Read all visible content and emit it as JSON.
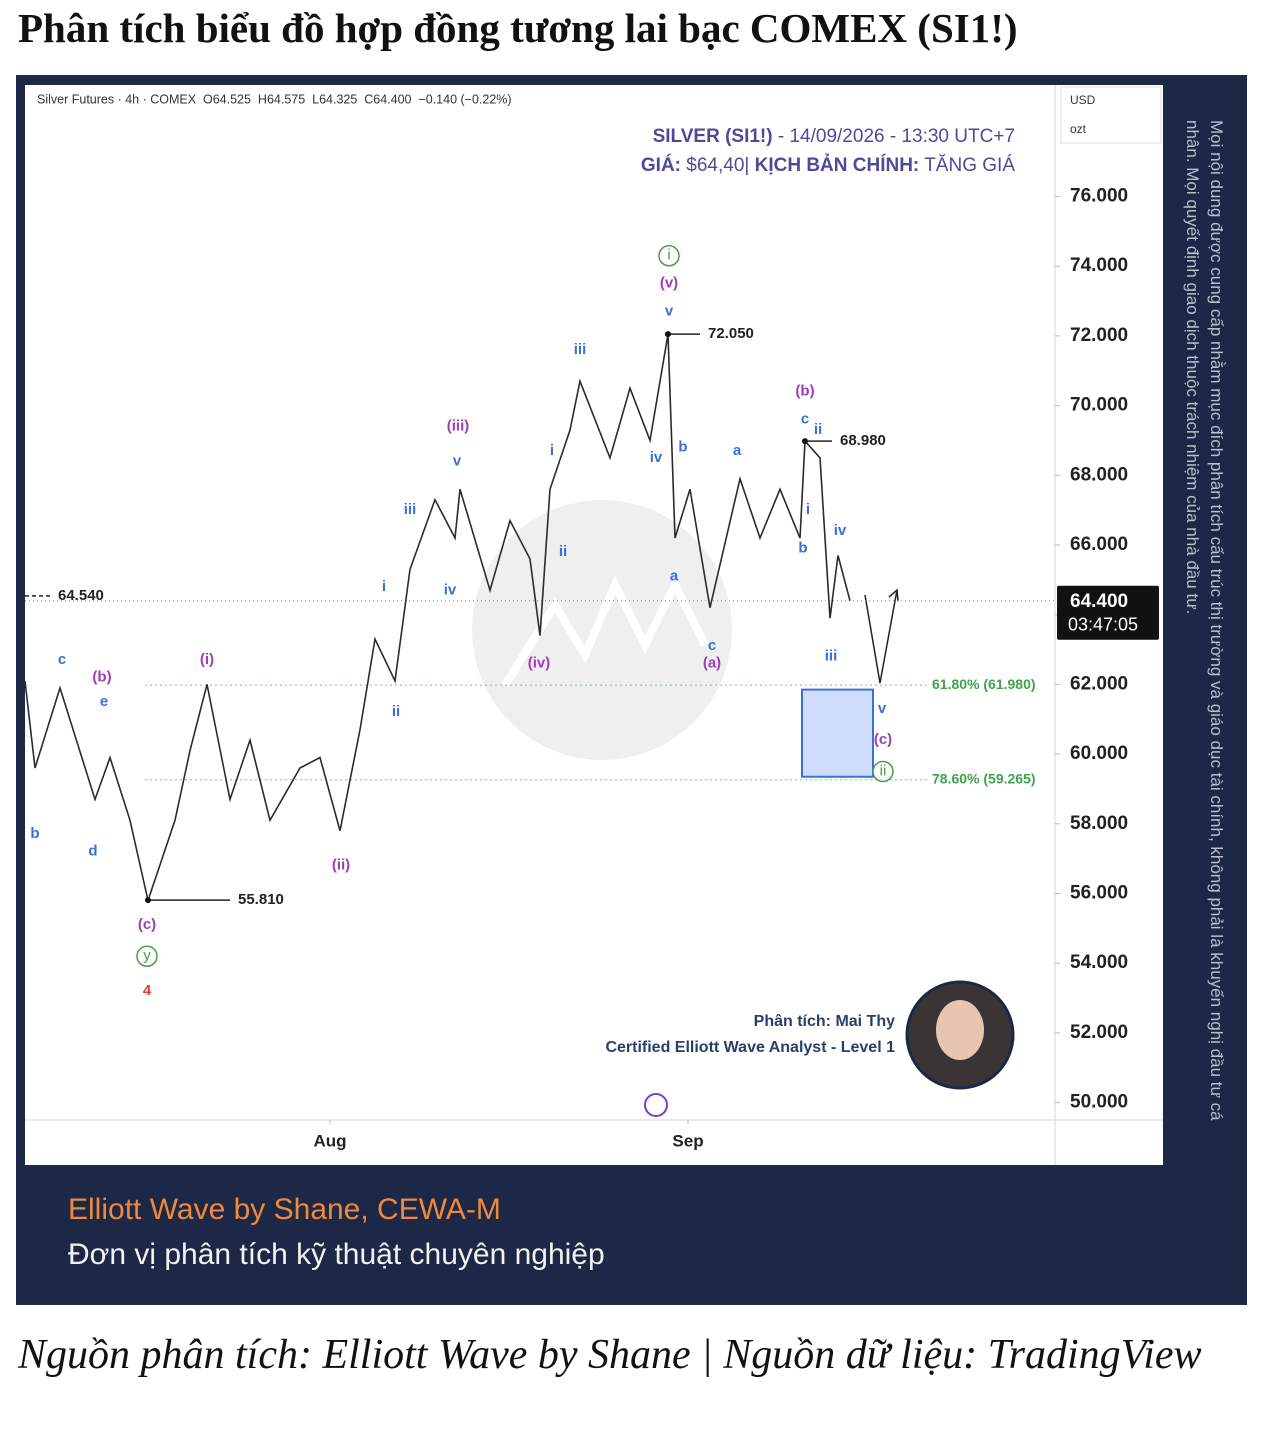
{
  "header": {
    "title": "Phân tích biểu đồ hợp đồng tương lai bạc COMEX (SI1!)"
  },
  "chart_data": {
    "type": "line",
    "symbol_info": "Silver Futures · 4h · COMEX  O64.525  H64.575  L64.325  C64.400  −0.140 (−0.22%)",
    "title_symbol": "SILVER (SI1!)",
    "title_rest": " - 14/09/2026 - 13:30 UTC+7",
    "price_label": "GIÁ:",
    "price_text": " $64,40| ",
    "scenario_label": "KỊCH BẢN CHÍNH:",
    "scenario_text": " TĂNG GIÁ",
    "currency": "USD",
    "unit": "ozt",
    "color": "#2b2b2b",
    "x": [
      0,
      1,
      3.5,
      7,
      8.5,
      10.5,
      12.3,
      15,
      16.5,
      18.2,
      20.5,
      22.5,
      24.5,
      27.5,
      29.5,
      31.5,
      33.5,
      35,
      37,
      38.5,
      41,
      43,
      43.5,
      46.5,
      48.5,
      50.5,
      51.5,
      52.5,
      54.5,
      55.5,
      58.5,
      60.5,
      62.5,
      64.3,
      65,
      66.5,
      68.5,
      71.5,
      73.5,
      75.5,
      77.5,
      78,
      79.5,
      80.5,
      81.3,
      82.5
    ],
    "values": [
      62.1,
      59.6,
      61.9,
      58.7,
      59.9,
      58.1,
      55.8,
      58.1,
      60.1,
      62.0,
      58.7,
      60.4,
      58.1,
      59.6,
      59.9,
      57.8,
      60.7,
      63.3,
      62.1,
      65.3,
      67.3,
      66.2,
      67.6,
      64.7,
      66.7,
      65.6,
      63.4,
      67.6,
      69.3,
      70.7,
      68.5,
      70.5,
      69.0,
      72.05,
      66.2,
      67.6,
      64.2,
      67.9,
      66.2,
      67.6,
      66.2,
      68.98,
      68.5,
      63.9,
      65.7,
      64.4
    ],
    "xlim": [
      0,
      103
    ],
    "xticks": [
      {
        "value": 30.5,
        "label": "Aug"
      },
      {
        "value": 66.3,
        "label": "Sep"
      }
    ],
    "ylim": [
      49.5,
      79.2
    ],
    "yticks": [
      {
        "value": 50,
        "label": "50.000"
      },
      {
        "value": 52,
        "label": "52.000"
      },
      {
        "value": 54,
        "label": "54.000"
      },
      {
        "value": 56,
        "label": "56.000"
      },
      {
        "value": 58,
        "label": "58.000"
      },
      {
        "value": 60,
        "label": "60.000"
      },
      {
        "value": 62,
        "label": "62.000"
      },
      {
        "value": 64,
        "label": "64.000"
      },
      {
        "value": 66,
        "label": "66.000"
      },
      {
        "value": 68,
        "label": "68.000"
      },
      {
        "value": 70,
        "label": "70.000"
      },
      {
        "value": 72,
        "label": "72.000"
      },
      {
        "value": 74,
        "label": "74.000"
      },
      {
        "value": 76,
        "label": "76.000"
      }
    ],
    "last_price": {
      "value": 64.4,
      "label": "64.400"
    },
    "countdown": "03:47:05",
    "price_levels": [
      {
        "value": 72.05,
        "label": "72.050",
        "x": [
          64.3,
          67.5
        ]
      },
      {
        "value": 68.98,
        "label": "68.980",
        "x": [
          78,
          80.7
        ]
      },
      {
        "value": 55.81,
        "label": "55.810",
        "x": [
          12.3,
          20.5
        ]
      },
      {
        "value": 64.54,
        "label": "64.540",
        "x": [
          0,
          2.5
        ]
      }
    ],
    "fib_levels": [
      {
        "value": 61.98,
        "label": "61.80% (61.980)",
        "x": [
          12,
          90.5
        ]
      },
      {
        "value": 59.265,
        "label": "78.60% (59.265)",
        "x": [
          12,
          90.5
        ]
      }
    ],
    "target_zone": {
      "x": [
        77.7,
        84.8
      ],
      "y": [
        59.35,
        61.85
      ]
    },
    "wave_labels": [
      {
        "text": "c",
        "x": 3.7,
        "y": 62.7,
        "color": "#3a6fd8"
      },
      {
        "text": "(b)",
        "x": 7.7,
        "y": 62.2,
        "color": "#a03cb8"
      },
      {
        "text": "e",
        "x": 7.9,
        "y": 61.5,
        "color": "#3a6fd8"
      },
      {
        "text": "b",
        "x": 1,
        "y": 57.7,
        "color": "#3a6fd8"
      },
      {
        "text": "d",
        "x": 6.8,
        "y": 57.2,
        "color": "#3a6fd8"
      },
      {
        "text": "(i)",
        "x": 18.2,
        "y": 62.7,
        "color": "#a03cb8"
      },
      {
        "text": "(c)",
        "x": 12.2,
        "y": 55.1,
        "color": "#a03cb8"
      },
      {
        "text": "y",
        "x": 12.2,
        "y": 54.2,
        "color": "#43a047",
        "circle": true
      },
      {
        "text": "4",
        "x": 12.2,
        "y": 53.2,
        "color": "#e53935"
      },
      {
        "text": "(ii)",
        "x": 31.6,
        "y": 56.8,
        "color": "#a03cb8"
      },
      {
        "text": "ii",
        "x": 37.1,
        "y": 61.2,
        "color": "#3a6fd8"
      },
      {
        "text": "i",
        "x": 35.9,
        "y": 64.8,
        "color": "#3a6fd8"
      },
      {
        "text": "iii",
        "x": 38.5,
        "y": 67.0,
        "color": "#3a6fd8"
      },
      {
        "text": "iv",
        "x": 42.5,
        "y": 64.7,
        "color": "#3a6fd8"
      },
      {
        "text": "(iii)",
        "x": 43.3,
        "y": 69.4,
        "color": "#a03cb8"
      },
      {
        "text": "v",
        "x": 43.2,
        "y": 68.4,
        "color": "#3a6fd8"
      },
      {
        "text": "(iv)",
        "x": 51.4,
        "y": 62.6,
        "color": "#a03cb8"
      },
      {
        "text": "ii",
        "x": 53.8,
        "y": 65.8,
        "color": "#3a6fd8"
      },
      {
        "text": "i",
        "x": 52.7,
        "y": 68.7,
        "color": "#3a6fd8"
      },
      {
        "text": "iii",
        "x": 55.5,
        "y": 71.6,
        "color": "#3a6fd8"
      },
      {
        "text": "iv",
        "x": 63.1,
        "y": 68.5,
        "color": "#3a6fd8"
      },
      {
        "text": "v",
        "x": 64.4,
        "y": 72.7,
        "color": "#3a6fd8"
      },
      {
        "text": "(v)",
        "x": 64.4,
        "y": 73.5,
        "color": "#a03cb8"
      },
      {
        "text": "i",
        "x": 64.4,
        "y": 74.3,
        "color": "#43a047",
        "circle": true
      },
      {
        "text": "b",
        "x": 65.8,
        "y": 68.8,
        "color": "#3a6fd8"
      },
      {
        "text": "a",
        "x": 71.2,
        "y": 68.7,
        "color": "#3a6fd8"
      },
      {
        "text": "a",
        "x": 64.9,
        "y": 65.1,
        "color": "#3a6fd8"
      },
      {
        "text": "c",
        "x": 68.7,
        "y": 63.1,
        "color": "#3a6fd8"
      },
      {
        "text": "(a)",
        "x": 68.7,
        "y": 62.6,
        "color": "#a03cb8"
      },
      {
        "text": "(b)",
        "x": 78,
        "y": 70.4,
        "color": "#a03cb8"
      },
      {
        "text": "c",
        "x": 78,
        "y": 69.6,
        "color": "#3a6fd8"
      },
      {
        "text": "ii",
        "x": 79.3,
        "y": 69.3,
        "color": "#3a6fd8"
      },
      {
        "text": "i",
        "x": 78.3,
        "y": 67.0,
        "color": "#3a6fd8"
      },
      {
        "text": "b",
        "x": 77.8,
        "y": 65.9,
        "color": "#3a6fd8"
      },
      {
        "text": "iv",
        "x": 81.5,
        "y": 66.4,
        "color": "#3a6fd8"
      },
      {
        "text": "iii",
        "x": 80.6,
        "y": 62.8,
        "color": "#3a6fd8"
      },
      {
        "text": "v",
        "x": 85.7,
        "y": 61.3,
        "color": "#3a6fd8"
      },
      {
        "text": "(c)",
        "x": 85.8,
        "y": 60.4,
        "color": "#a03cb8"
      },
      {
        "text": "ii",
        "x": 85.8,
        "y": 59.5,
        "color": "#43a047",
        "circle": true
      }
    ]
  },
  "analyst": {
    "credit": "Phân tích: Mai Thy",
    "certification": "Certified Elliott Wave Analyst - Level 1"
  },
  "disclaimer": "Mọi nội dung được cung cấp nhằm mục đích phân tích cấu trúc thị trường và giáo dục tài chính, không phải là khuyến nghị đầu tư cá nhân. Mọi quyết định giao dịch thuộc trách nhiệm của nhà đầu tư.",
  "footer": {
    "brand": "Elliott Wave by Shane, CEWA-M",
    "tagline": "Đơn vị phân tích kỹ thuật chuyên nghiệp"
  },
  "source": "Nguồn phân tích: Elliott Wave by Shane | Nguồn dữ liệu: TradingView"
}
